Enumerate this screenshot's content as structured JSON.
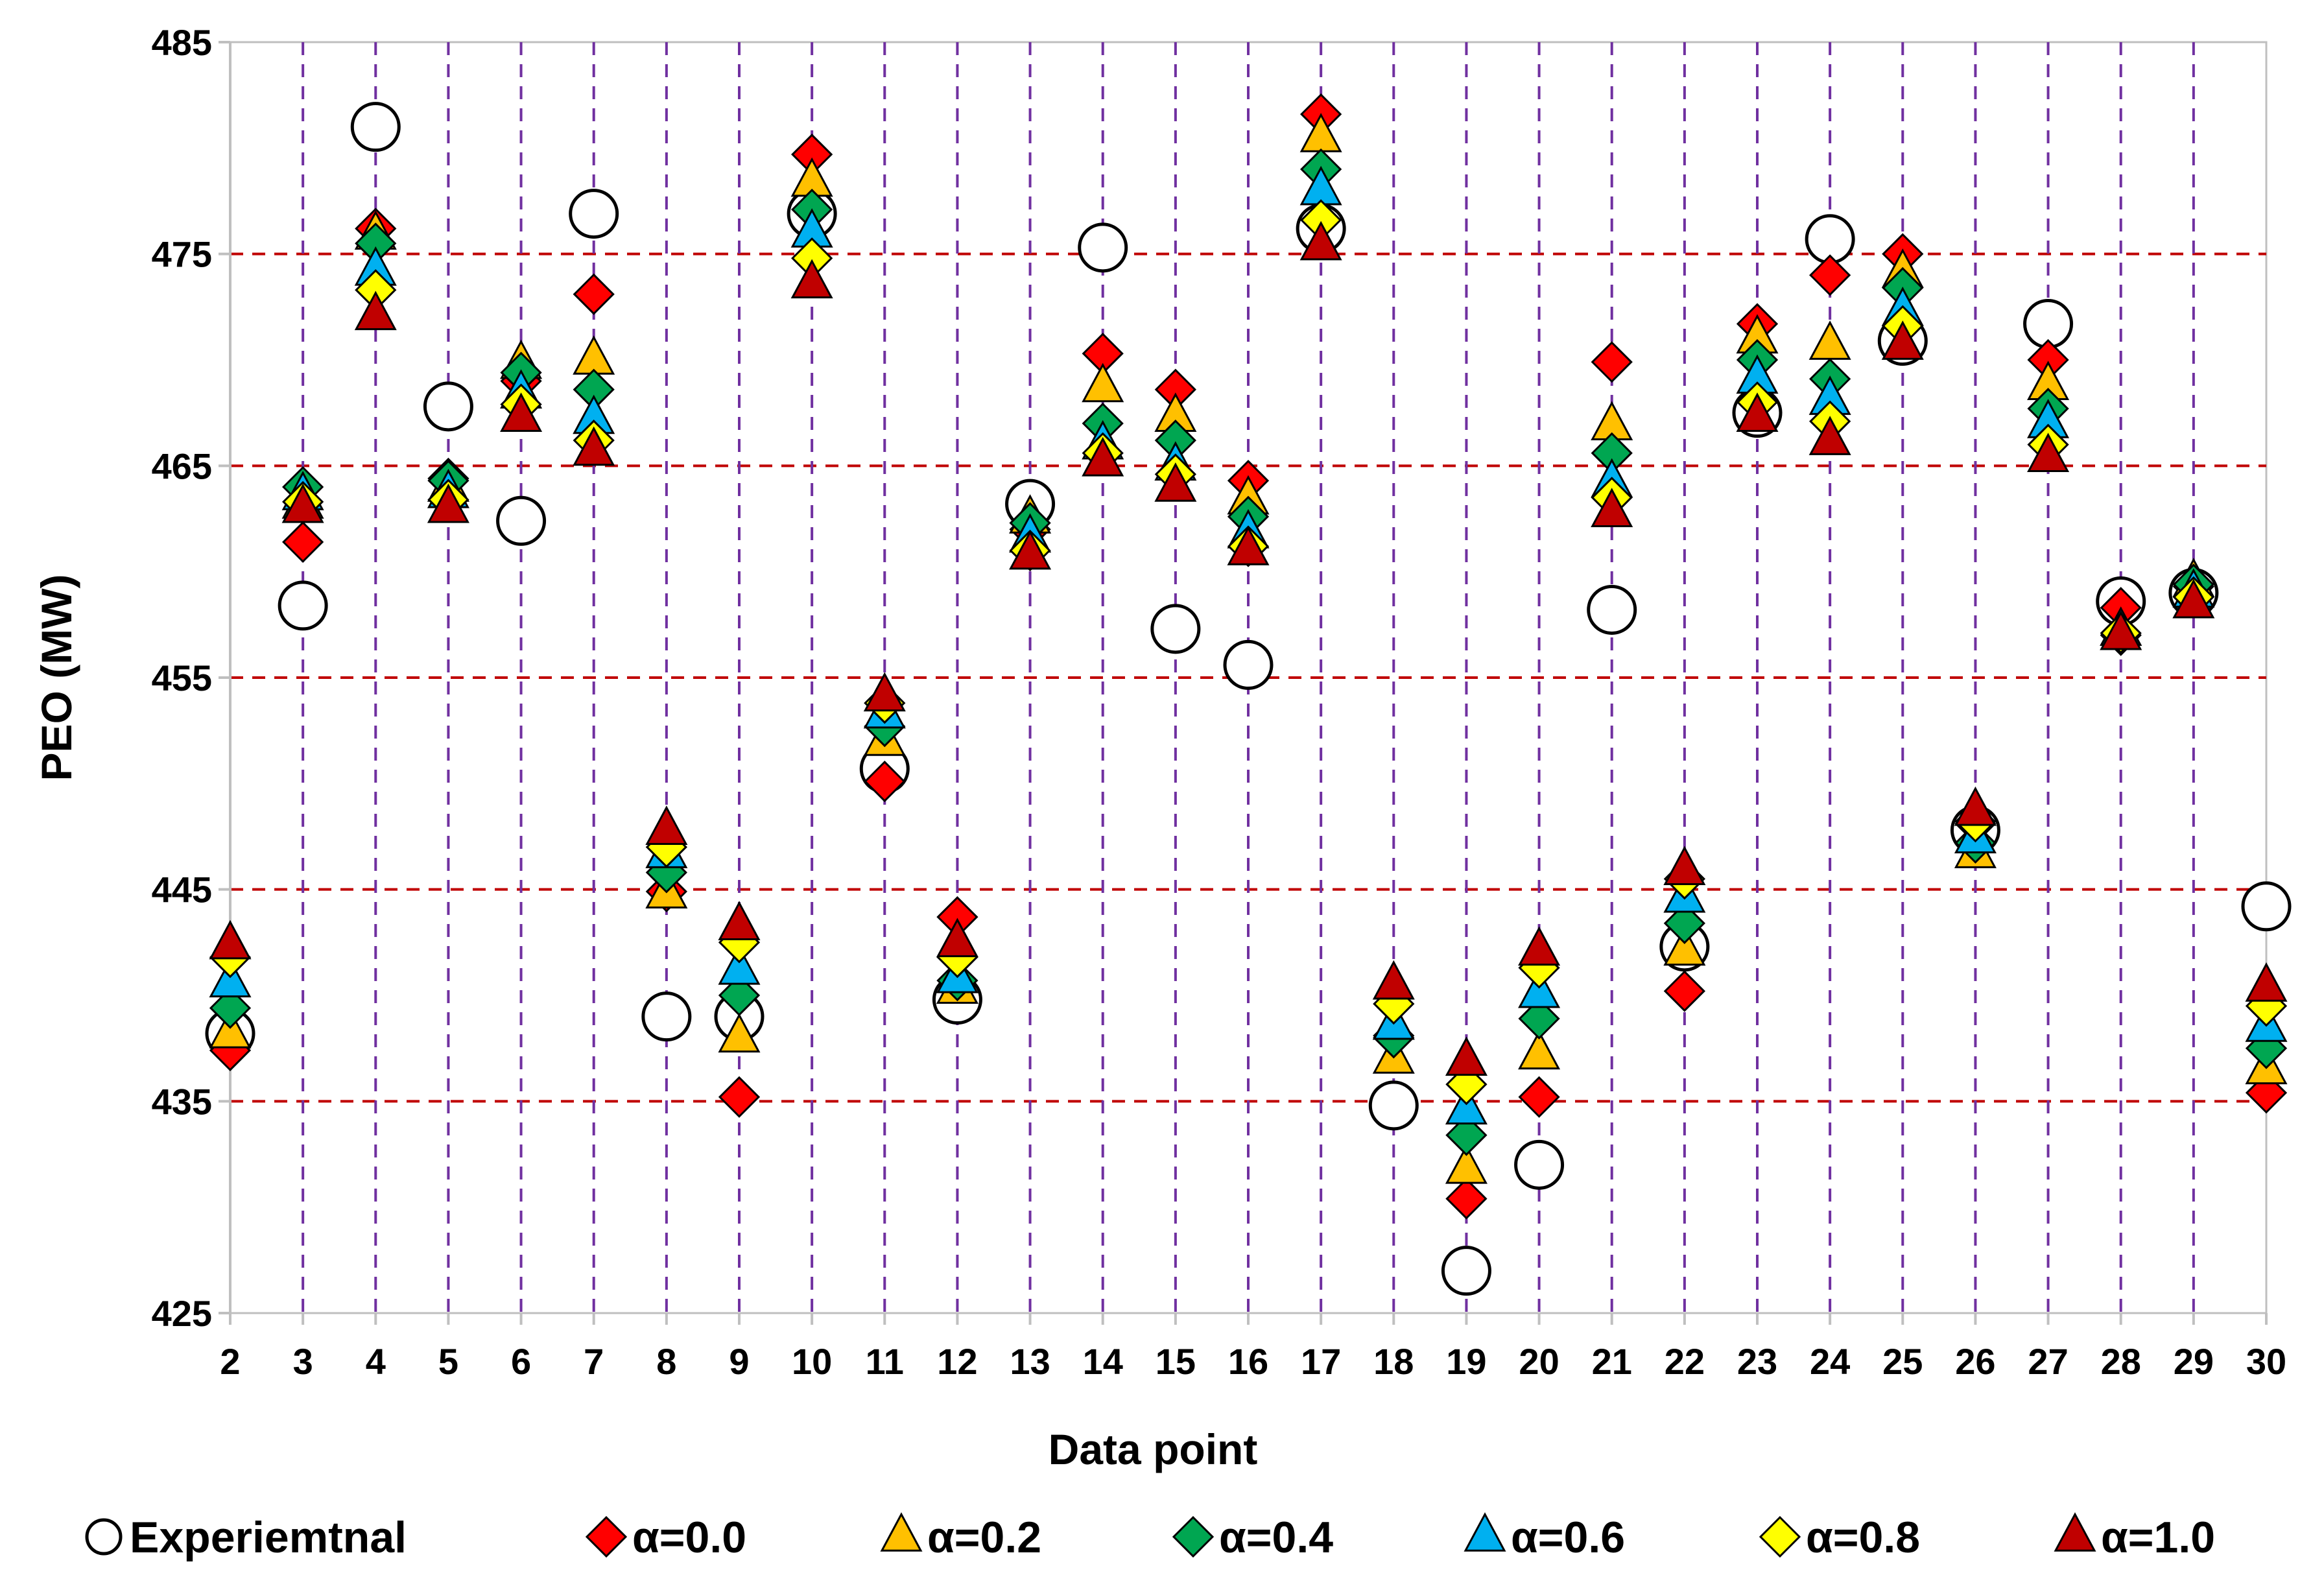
{
  "chart_data": {
    "type": "scatter",
    "title": "",
    "xlabel": "Data point",
    "ylabel": "PEO (MW)",
    "x": [
      2,
      3,
      4,
      5,
      6,
      7,
      8,
      9,
      10,
      11,
      12,
      13,
      14,
      15,
      16,
      17,
      18,
      19,
      20,
      21,
      22,
      23,
      24,
      25,
      26,
      27,
      28,
      29,
      30
    ],
    "xlim": [
      2,
      30
    ],
    "ylim": [
      425,
      485
    ],
    "yticks": [
      485,
      475,
      465,
      455,
      445,
      435,
      425
    ],
    "horizontal_gridlines": [
      475,
      465,
      455,
      445,
      435
    ],
    "series": [
      {
        "name": "Experiemtnal",
        "marker": "circle",
        "color": "#ffffff",
        "values": [
          438.2,
          458.4,
          481,
          467.8,
          462.4,
          476.9,
          439,
          439,
          476.9,
          450.7,
          439.8,
          463.2,
          475.3,
          457.3,
          455.6,
          476.2,
          434.8,
          427,
          432,
          458.2,
          442.3,
          467.5,
          475.7,
          470.9,
          447.8,
          471.7,
          458.6,
          459,
          444.2
        ]
      },
      {
        "name": "α=0.0",
        "marker": "diamond",
        "color": "#ff0000",
        "values": [
          437.4,
          461.4,
          476.2,
          464.4,
          469,
          473.1,
          444.9,
          435.2,
          479.7,
          450.1,
          443.7,
          462,
          470.3,
          468.6,
          464.3,
          481.6,
          438.1,
          430.4,
          435.2,
          469.9,
          440.2,
          471.7,
          474,
          475,
          448.1,
          470,
          458.3,
          459.3,
          435.4
        ]
      },
      {
        "name": "α=0.2",
        "marker": "triangle",
        "color": "#ffc000",
        "values": [
          438.2,
          463.2,
          475.9,
          464,
          469.8,
          470,
          444.8,
          438,
          478.4,
          452,
          440.3,
          462.5,
          468.7,
          467.3,
          463.4,
          480.5,
          437,
          431.8,
          437.2,
          466.9,
          442.1,
          471,
          470.7,
          474.1,
          446.7,
          468.8,
          457.2,
          459.5,
          436.5
        ]
      },
      {
        "name": "α=0.4",
        "marker": "diamond",
        "color": "#00a651",
        "values": [
          439.4,
          464,
          475.5,
          464.3,
          469.4,
          468.6,
          445.8,
          440,
          477.1,
          452.7,
          440.7,
          462.3,
          467,
          466.2,
          462.6,
          479,
          438,
          433.4,
          438.9,
          465.6,
          443.4,
          470,
          469.1,
          473.4,
          447.2,
          467.7,
          457,
          459.4,
          437.5
        ]
      },
      {
        "name": "α=0.6",
        "marker": "triangle",
        "color": "#00b0f0",
        "values": [
          440.6,
          463.6,
          474.2,
          463.7,
          468.4,
          467.2,
          446.7,
          441.2,
          476,
          453.3,
          440.8,
          461.6,
          466,
          465,
          461.8,
          478,
          438.6,
          434.6,
          440.1,
          464.2,
          444.6,
          469.1,
          468.1,
          472.3,
          447.4,
          467,
          457.2,
          459,
          438.5
        ]
      },
      {
        "name": "α=0.8",
        "marker": "diamond",
        "color": "#ffff00",
        "values": [
          441.8,
          463.3,
          473.3,
          463.4,
          467.9,
          466.2,
          447,
          442.5,
          474.8,
          453.8,
          441.8,
          461,
          465.6,
          464.6,
          461.2,
          476.6,
          439.6,
          435.8,
          441.3,
          463.5,
          445.5,
          468,
          467.1,
          471.6,
          448.2,
          466,
          457.1,
          458.8,
          439.5
        ]
      },
      {
        "name": "α=1.0",
        "marker": "triangle",
        "color": "#c00000",
        "values": [
          442.4,
          463,
          472.1,
          463,
          467.3,
          465.7,
          447.8,
          443.3,
          473.6,
          454.1,
          442.5,
          460.8,
          465.2,
          464,
          461,
          475.4,
          440.5,
          436.9,
          442.1,
          462.8,
          445.9,
          467.3,
          466.2,
          470.7,
          448.7,
          465.4,
          457,
          458.5,
          440.4
        ]
      }
    ],
    "legend": "bottom"
  },
  "colors": {
    "hgrid": "#c00000",
    "vgrid": "#7030a0",
    "axis": "#bfbfbf"
  }
}
